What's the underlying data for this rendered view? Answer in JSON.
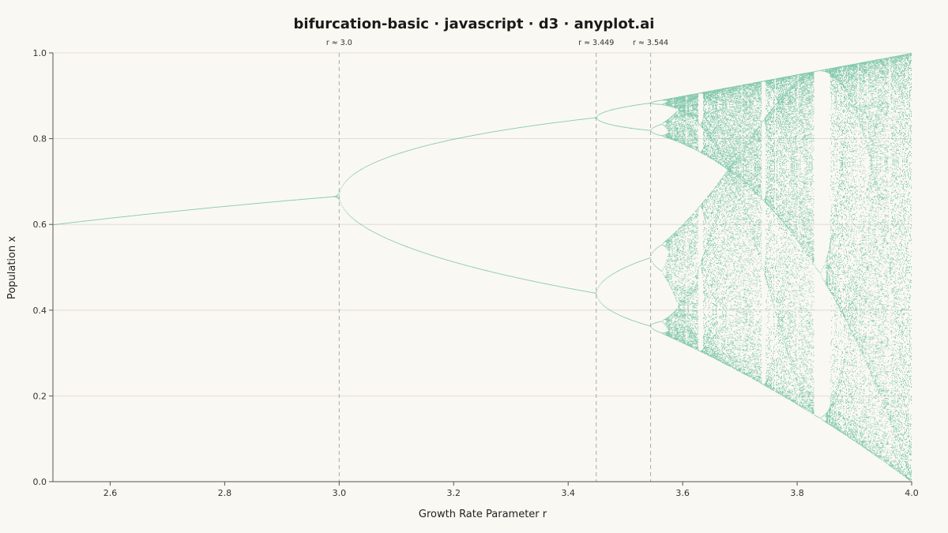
{
  "chart_data": {
    "type": "scatter",
    "title": "bifurcation-basic · javascript · d3 · anyplot.ai",
    "xlabel": "Growth Rate Parameter r",
    "ylabel": "Population x",
    "xlim": [
      2.5,
      4.0
    ],
    "ylim": [
      0.0,
      1.0
    ],
    "grid": "horizontal",
    "x_ticks": [
      "2.6",
      "2.8",
      "3.0",
      "3.2",
      "3.4",
      "3.6",
      "3.8",
      "4.0"
    ],
    "y_ticks": [
      "0.0",
      "0.2",
      "0.4",
      "0.6",
      "0.8",
      "1.0"
    ],
    "annotations": [
      {
        "r": 3.0,
        "label": "r ≈ 3.0"
      },
      {
        "r": 3.449,
        "label": "r ≈ 3.449"
      },
      {
        "r": 3.544,
        "label": "r ≈ 3.544"
      }
    ],
    "series": [
      {
        "function": "x_{n+1} = r·x_n·(1 − x_n)",
        "x0": 0.5,
        "r_range": [
          2.5,
          4.0
        ],
        "color": "#0E9A6C"
      }
    ]
  }
}
